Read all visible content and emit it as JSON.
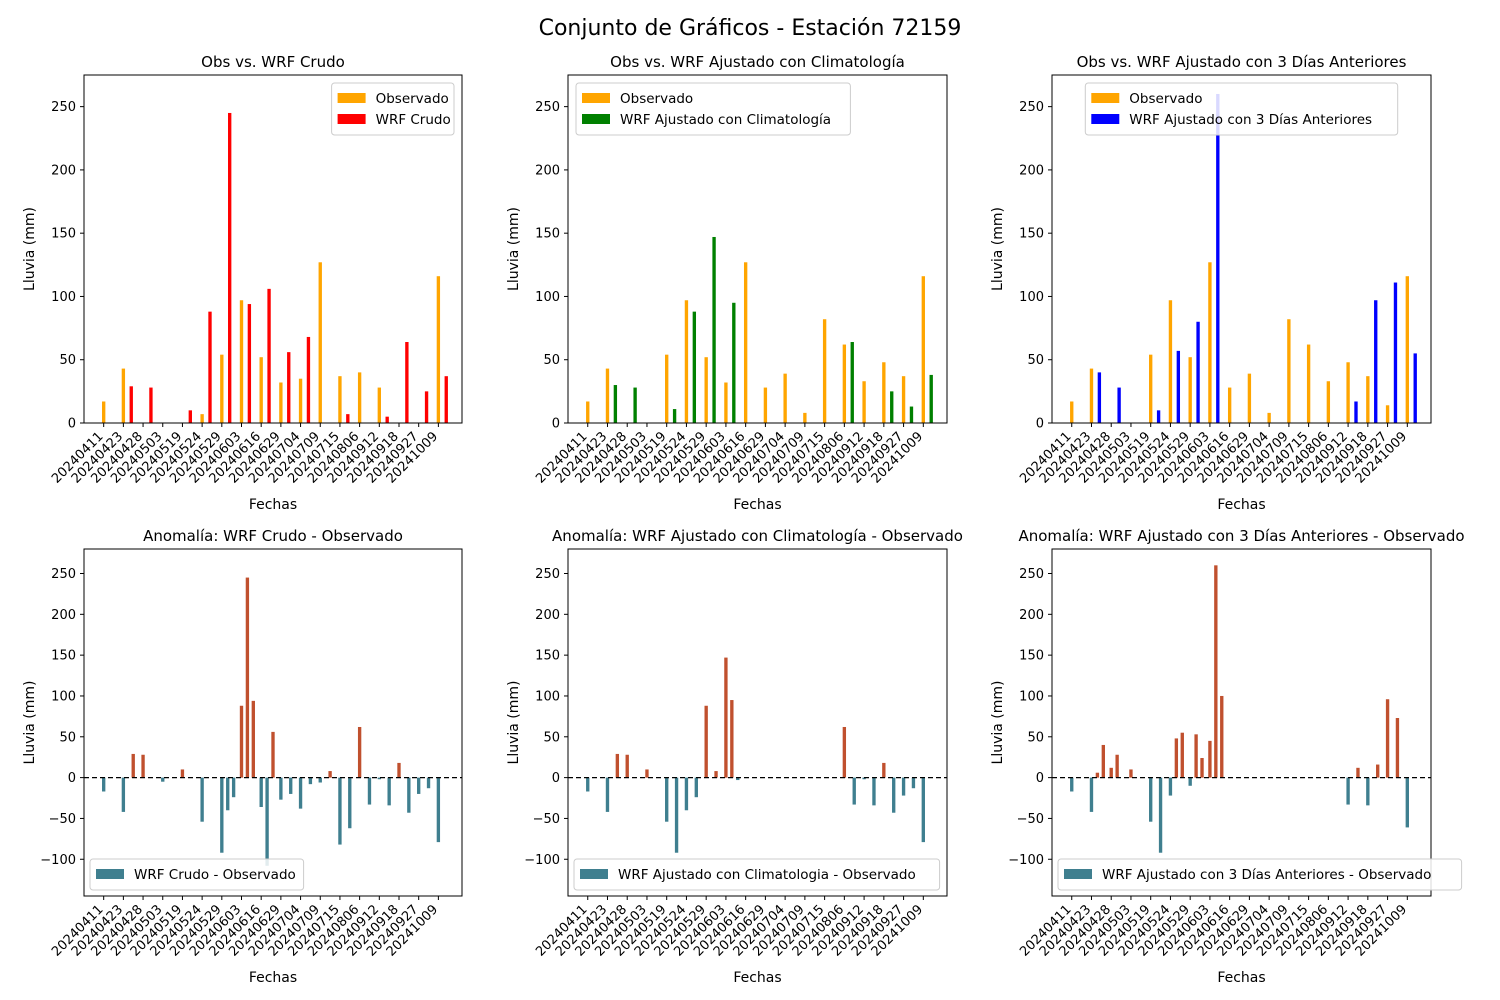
{
  "figure": {
    "title": "Conjunto de Gráficos - Estación 72159"
  },
  "colors": {
    "observed": "#ffa500",
    "raw": "#ff0000",
    "clim": "#008000",
    "prev3": "#0000ff",
    "positive": "#c0502e",
    "negative": "#3f7f8f",
    "zero_line": "#000000"
  },
  "chart_data": [
    {
      "type": "bar",
      "title": "Obs vs. WRF Crudo",
      "xlabel": "Fechas",
      "ylabel": "Lluvia (mm)",
      "ylim": [
        0,
        275
      ],
      "yticks": [
        0,
        50,
        100,
        150,
        200,
        250
      ],
      "xticks": [
        "20240411",
        "20240423",
        "20240428",
        "20240503",
        "20240519",
        "20240524",
        "20240529",
        "20240603",
        "20240616",
        "20240629",
        "20240704",
        "20240709",
        "20240715",
        "20240806",
        "20240912",
        "20240918",
        "20240927",
        "20241009"
      ],
      "legend": {
        "placement": "upper-right",
        "entries": [
          "Observado",
          "WRF Crudo"
        ]
      },
      "series": [
        {
          "name": "Observado",
          "color": "#ffa500",
          "x": [
            1,
            2,
            3,
            4,
            5,
            6,
            7,
            8,
            9,
            10,
            11,
            12,
            13,
            14,
            15,
            16,
            17,
            18
          ],
          "values": [
            17,
            43,
            0,
            0,
            0,
            7,
            54,
            97,
            52,
            32,
            35,
            127,
            37,
            40,
            28,
            0,
            0,
            116
          ]
        },
        {
          "name": "WRF Crudo",
          "color": "#ff0000",
          "x": [
            1.4,
            2.4,
            3.4,
            4.4,
            5.4,
            6.4,
            7.4,
            8.4,
            9.4,
            10.4,
            11.4,
            12.4,
            13.4,
            14.4,
            15.4,
            16.4,
            17.4,
            18.4
          ],
          "values": [
            0,
            29,
            28,
            0,
            10,
            88,
            245,
            94,
            106,
            56,
            68,
            0,
            7,
            0,
            5,
            64,
            25,
            37
          ]
        }
      ]
    },
    {
      "type": "bar",
      "title": "Obs vs. WRF Ajustado con Climatología",
      "xlabel": "Fechas",
      "ylabel": "Lluvia (mm)",
      "ylim": [
        0,
        275
      ],
      "yticks": [
        0,
        50,
        100,
        150,
        200,
        250
      ],
      "xticks": [
        "20240411",
        "20240423",
        "20240428",
        "20240503",
        "20240519",
        "20240524",
        "20240529",
        "20240603",
        "20240616",
        "20240629",
        "20240704",
        "20240709",
        "20240715",
        "20240806",
        "20240912",
        "20240918",
        "20240927",
        "20241009"
      ],
      "legend": {
        "placement": "upper-left",
        "entries": [
          "Observado",
          "WRF Ajustado con Climatología"
        ]
      },
      "series": [
        {
          "name": "Observado",
          "color": "#ffa500",
          "x": [
            1,
            2,
            3,
            4,
            5,
            6,
            7,
            8,
            9,
            10,
            11,
            12,
            13,
            14,
            15,
            16,
            17,
            18
          ],
          "values": [
            17,
            43,
            0,
            0,
            54,
            97,
            52,
            32,
            127,
            28,
            39,
            8,
            82,
            62,
            33,
            48,
            37,
            116
          ]
        },
        {
          "name": "WRF Ajustado con Climatología",
          "color": "#008000",
          "x": [
            1.4,
            2.4,
            3.4,
            4.4,
            5.4,
            6.4,
            7.4,
            8.4,
            9.4,
            10.4,
            11.4,
            12.4,
            13.4,
            14.4,
            15.4,
            16.4,
            17.4,
            18.4
          ],
          "values": [
            0,
            30,
            28,
            0,
            11,
            88,
            147,
            95,
            0,
            0,
            0,
            0,
            0,
            64,
            0,
            25,
            13,
            38
          ]
        }
      ]
    },
    {
      "type": "bar",
      "title": "Obs vs. WRF Ajustado con 3 Días Anteriores",
      "xlabel": "Fechas",
      "ylabel": "Lluvia (mm)",
      "ylim": [
        0,
        275
      ],
      "yticks": [
        0,
        50,
        100,
        150,
        200,
        250
      ],
      "xticks": [
        "20240411",
        "20240423",
        "20240428",
        "20240503",
        "20240519",
        "20240524",
        "20240529",
        "20240603",
        "20240616",
        "20240629",
        "20240704",
        "20240709",
        "20240715",
        "20240806",
        "20240912",
        "20240918",
        "20240927",
        "20241009"
      ],
      "legend": {
        "placement": "upper-center",
        "entries": [
          "Observado",
          "WRF Ajustado con 3 Días Anteriores"
        ]
      },
      "series": [
        {
          "name": "Observado",
          "color": "#ffa500",
          "x": [
            1,
            2,
            3,
            4,
            5,
            6,
            7,
            8,
            9,
            10,
            11,
            12,
            13,
            14,
            15,
            16,
            17,
            18
          ],
          "values": [
            17,
            43,
            0,
            0,
            54,
            97,
            52,
            127,
            28,
            39,
            8,
            82,
            62,
            33,
            48,
            37,
            14,
            116
          ]
        },
        {
          "name": "WRF Ajustado con 3 Días Anteriores",
          "color": "#0000ff",
          "x": [
            1.4,
            2.4,
            3.4,
            4.4,
            5.4,
            6.4,
            7.4,
            8.4,
            9.4,
            10.4,
            11.4,
            12.4,
            13.4,
            14.4,
            15.4,
            16.4,
            17.4,
            18.4
          ],
          "values": [
            0,
            40,
            28,
            0,
            10,
            57,
            80,
            260,
            0,
            0,
            0,
            0,
            0,
            0,
            17,
            97,
            111,
            55
          ]
        }
      ]
    },
    {
      "type": "bar",
      "title": "Anomalía: WRF Crudo - Observado",
      "xlabel": "Fechas",
      "ylabel": "Lluvia (mm)",
      "ylim": [
        -145,
        280
      ],
      "yticks": [
        -100,
        -50,
        0,
        50,
        100,
        150,
        200,
        250
      ],
      "xticks": [
        "20240411",
        "20240423",
        "20240428",
        "20240503",
        "20240519",
        "20240524",
        "20240529",
        "20240603",
        "20240616",
        "20240629",
        "20240704",
        "20240709",
        "20240715",
        "20240806",
        "20240912",
        "20240918",
        "20240927",
        "20241009"
      ],
      "legend": {
        "placement": "lower-left",
        "entries": [
          "WRF Crudo - Observado"
        ]
      },
      "zero_line": true,
      "series": [
        {
          "name": "WRF Crudo - Observado",
          "x": [
            1,
            2,
            2.5,
            3,
            4,
            5,
            6,
            7,
            7.3,
            7.6,
            8,
            8.3,
            8.6,
            9,
            9.3,
            9.6,
            10,
            10.5,
            11,
            11.5,
            12,
            12.5,
            13,
            13.5,
            14,
            14.5,
            15,
            15.5,
            16,
            16.5,
            17,
            17.5,
            18
          ],
          "values": [
            -17,
            -42,
            29,
            28,
            -5,
            10,
            -54,
            -92,
            -40,
            -24,
            88,
            245,
            94,
            -36,
            -108,
            56,
            -27,
            -20,
            -38,
            -8,
            -6,
            8,
            -82,
            -62,
            62,
            -33,
            -2,
            -34,
            18,
            -43,
            -20,
            -13,
            -79
          ]
        }
      ]
    },
    {
      "type": "bar",
      "title": "Anomalía: WRF Ajustado con Climatología - Observado",
      "xlabel": "Fechas",
      "ylabel": "Lluvia (mm)",
      "ylim": [
        -145,
        280
      ],
      "yticks": [
        -100,
        -50,
        0,
        50,
        100,
        150,
        200,
        250
      ],
      "xticks": [
        "20240411",
        "20240423",
        "20240428",
        "20240503",
        "20240519",
        "20240524",
        "20240529",
        "20240603",
        "20240616",
        "20240629",
        "20240704",
        "20240709",
        "20240715",
        "20240806",
        "20240912",
        "20240918",
        "20240927",
        "20241009"
      ],
      "legend": {
        "placement": "lower-left",
        "entries": [
          "WRF Ajustado con Climatologia - Observado"
        ]
      },
      "zero_line": true,
      "series": [
        {
          "name": "WRF Ajustado con Climatologia - Observado",
          "x": [
            1,
            2,
            2.5,
            3,
            4,
            5,
            5.5,
            6,
            6.5,
            7,
            7.5,
            8,
            8.3,
            8.6,
            14,
            14.5,
            15,
            15.5,
            16,
            16.5,
            17,
            17.5,
            18
          ],
          "values": [
            -17,
            -42,
            29,
            28,
            10,
            -54,
            -92,
            -40,
            -24,
            88,
            8,
            147,
            95,
            -3,
            62,
            -33,
            -2,
            -34,
            18,
            -43,
            -22,
            -13,
            -79
          ]
        }
      ]
    },
    {
      "type": "bar",
      "title": "Anomalía: WRF Ajustado con 3 Días Anteriores - Observado",
      "xlabel": "Fechas",
      "ylabel": "Lluvia (mm)",
      "ylim": [
        -145,
        280
      ],
      "yticks": [
        -100,
        -50,
        0,
        50,
        100,
        150,
        200,
        250
      ],
      "xticks": [
        "20240411",
        "20240423",
        "20240428",
        "20240503",
        "20240519",
        "20240524",
        "20240529",
        "20240603",
        "20240616",
        "20240629",
        "20240704",
        "20240709",
        "20240715",
        "20240806",
        "20240912",
        "20240918",
        "20240927",
        "20241009"
      ],
      "legend": {
        "placement": "lower-left",
        "entries": [
          "WRF Ajustado con 3 Días Anteriores - Observado"
        ]
      },
      "zero_line": true,
      "series": [
        {
          "name": "WRF Ajustado con 3 Días Anteriores - Observado",
          "x": [
            1,
            2,
            2.3,
            2.6,
            3,
            3.3,
            4,
            5,
            5.5,
            6,
            6.3,
            6.6,
            7,
            7.3,
            7.6,
            8,
            8.3,
            8.6,
            15,
            15.5,
            16,
            16.5,
            17,
            17.5,
            18
          ],
          "values": [
            -17,
            -42,
            6,
            40,
            12,
            28,
            10,
            -54,
            -92,
            -22,
            48,
            55,
            -10,
            53,
            24,
            45,
            260,
            100,
            -33,
            12,
            -34,
            16,
            96,
            73,
            -61
          ]
        }
      ]
    }
  ]
}
